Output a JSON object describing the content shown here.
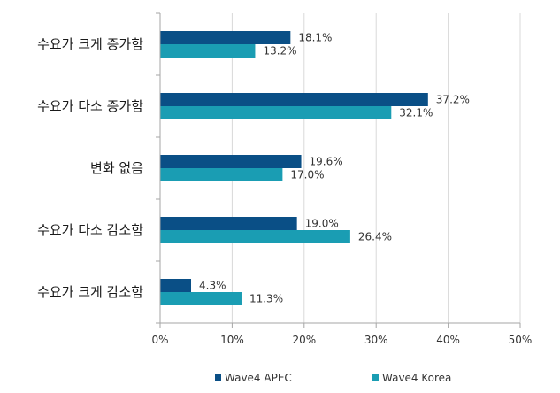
{
  "chart_data": {
    "type": "bar",
    "orientation": "horizontal",
    "categories": [
      "수요가 크게 증가함",
      "수요가 다소 증가함",
      "변화 없음",
      "수요가 다소 감소함",
      "수요가 크게 감소함"
    ],
    "series": [
      {
        "name": "Wave4 APEC",
        "values": [
          18.1,
          37.2,
          19.6,
          19.0,
          4.3
        ],
        "labels": [
          "18.1%",
          "37.2%",
          "19.6%",
          "19.0%",
          "4.3%"
        ],
        "color": "#0a4f86"
      },
      {
        "name": "Wave4 Korea",
        "values": [
          13.2,
          32.1,
          17.0,
          26.4,
          11.3
        ],
        "labels": [
          "13.2%",
          "32.1%",
          "17.0%",
          "26.4%",
          "11.3%"
        ],
        "color": "#1a9db3"
      }
    ],
    "xlim": [
      0,
      50
    ],
    "xticks": [
      0,
      10,
      20,
      30,
      40,
      50
    ],
    "xtick_labels": [
      "0%",
      "10%",
      "20%",
      "30%",
      "40%",
      "50%"
    ],
    "grid": "vertical",
    "legend": "bottom",
    "title": "",
    "xlabel": "",
    "ylabel": ""
  }
}
